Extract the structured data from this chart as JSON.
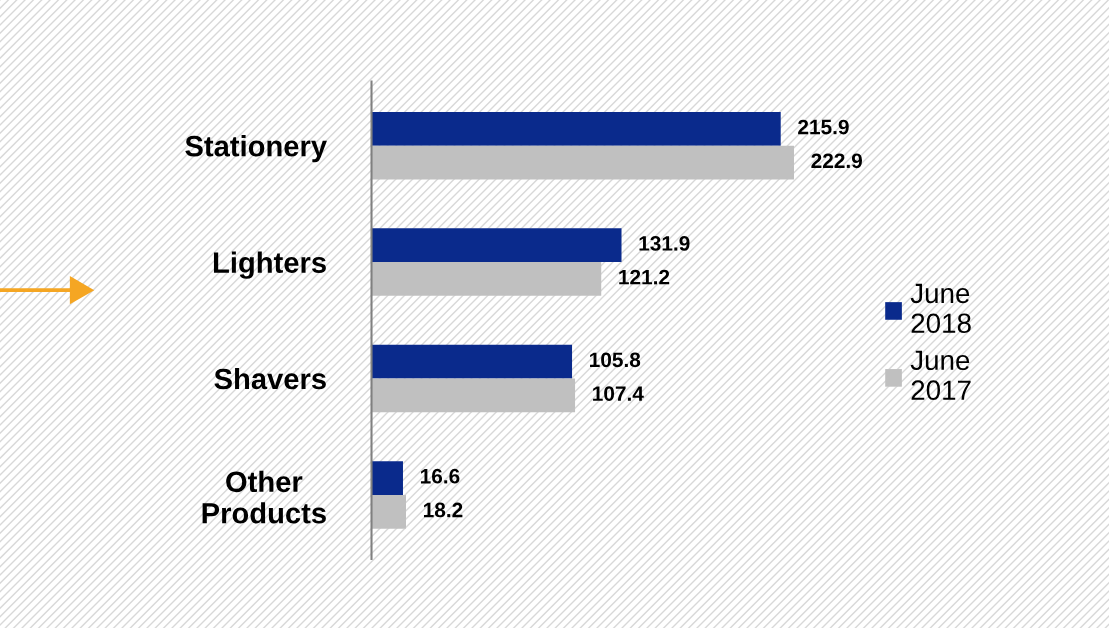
{
  "chart_data": {
    "type": "bar",
    "orientation": "horizontal",
    "categories": [
      "Stationery",
      "Lighters",
      "Shavers",
      "Other\nProducts"
    ],
    "series": [
      {
        "name": "June 2018",
        "color": "#0a2a8c",
        "values": [
          215.9,
          131.9,
          105.8,
          16.6
        ]
      },
      {
        "name": "June 2017",
        "color": "#c0c0c0",
        "values": [
          222.9,
          121.2,
          107.4,
          18.2
        ]
      }
    ],
    "data_labels": true,
    "legend": "right",
    "grid": false,
    "tick_labels": "y"
  }
}
